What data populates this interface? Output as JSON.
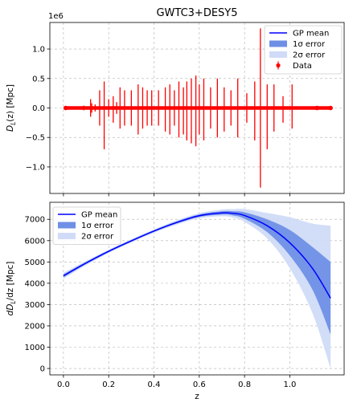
{
  "figure": {
    "title": "GWTC3+DESY5"
  },
  "chart_data": [
    {
      "type": "scatter",
      "title": "GWTC3+DESY5",
      "xlabel": "",
      "ylabel": "D_L(z) [Mpc]",
      "ylabel_parts": {
        "main": "D",
        "sub": "L",
        "rest": "(z) [Mpc]"
      },
      "y_scale_label": "1e6",
      "xlim": [
        -0.06,
        1.24
      ],
      "ylim": [
        -1.45,
        1.45
      ],
      "x_ticks": [
        0.0,
        0.2,
        0.4,
        0.6,
        0.8,
        1.0
      ],
      "y_ticks": [
        -1.0,
        -0.5,
        0.0,
        0.5,
        1.0
      ],
      "y_tick_labels": [
        "−1.0",
        "−0.5",
        "0.0",
        "0.5",
        "1.0"
      ],
      "grid": true,
      "legend_position": "top-right",
      "legend": [
        {
          "label": "GP mean",
          "kind": "line",
          "color": "#0000ff"
        },
        {
          "label": "1σ error",
          "kind": "band",
          "color": "#6f8fe6"
        },
        {
          "label": "2σ error",
          "kind": "band",
          "color": "#d0dbf7"
        },
        {
          "label": "Data",
          "kind": "errorbar",
          "color": "#ff0000"
        }
      ],
      "series": [
        {
          "name": "Data",
          "color": "#ff0000",
          "x": [
            0.01,
            0.03,
            0.06,
            0.09,
            0.12,
            0.125,
            0.14,
            0.16,
            0.18,
            0.2,
            0.22,
            0.235,
            0.25,
            0.27,
            0.3,
            0.33,
            0.35,
            0.37,
            0.39,
            0.42,
            0.45,
            0.47,
            0.49,
            0.51,
            0.53,
            0.545,
            0.565,
            0.585,
            0.6,
            0.62,
            0.65,
            0.68,
            0.71,
            0.74,
            0.77,
            0.81,
            0.845,
            0.87,
            0.9,
            0.93,
            0.97,
            1.01,
            1.08,
            1.12,
            1.18
          ],
          "y": [
            0,
            0,
            0,
            0,
            0,
            0,
            0,
            0,
            0,
            0,
            0,
            0,
            0,
            0,
            0,
            0,
            0,
            0,
            0,
            0,
            0,
            0,
            0,
            0,
            0,
            0,
            0,
            0,
            0,
            0,
            0,
            0,
            0,
            0,
            0,
            0,
            0,
            0,
            0,
            0,
            0,
            0,
            0,
            0,
            0
          ],
          "err_up": [
            0,
            0.02,
            0.02,
            0.04,
            0.15,
            0.08,
            0.06,
            0.3,
            0.45,
            0.15,
            0.2,
            0.1,
            0.35,
            0.3,
            0.3,
            0.4,
            0.35,
            0.3,
            0.3,
            0.3,
            0.35,
            0.4,
            0.3,
            0.45,
            0.35,
            0.45,
            0.5,
            0.55,
            0.4,
            0.5,
            0.35,
            0.5,
            0.35,
            0.3,
            0.5,
            0.25,
            0.45,
            1.35,
            0.4,
            0.4,
            0.2,
            0.4,
            0.02,
            0.01,
            0.01
          ],
          "err_down": [
            0,
            0.02,
            0.02,
            0.04,
            0.15,
            0.08,
            0.06,
            0.3,
            0.7,
            0.15,
            0.25,
            0.1,
            0.35,
            0.3,
            0.3,
            0.45,
            0.35,
            0.3,
            0.3,
            0.3,
            0.4,
            0.45,
            0.3,
            0.5,
            0.45,
            0.55,
            0.6,
            0.65,
            0.45,
            0.55,
            0.35,
            0.5,
            0.4,
            0.3,
            0.5,
            0.25,
            0.55,
            1.35,
            0.7,
            0.4,
            0.25,
            0.35,
            0.02,
            0.01,
            0.01
          ]
        }
      ],
      "marker_points": {
        "x": [
          0.01,
          1.12,
          1.18
        ],
        "y": [
          0,
          0,
          0
        ]
      }
    },
    {
      "type": "line",
      "title": "",
      "xlabel": "z",
      "ylabel": "dD_L/dz [Mpc]",
      "ylabel_parts": {
        "main": "dD",
        "sub": "L",
        "rest": "/dz [Mpc]"
      },
      "xlim": [
        -0.06,
        1.24
      ],
      "ylim": [
        -300,
        7800
      ],
      "x_ticks": [
        0.0,
        0.2,
        0.4,
        0.6,
        0.8,
        1.0
      ],
      "x_tick_labels": [
        "0.0",
        "0.2",
        "0.4",
        "0.6",
        "0.8",
        "1.0"
      ],
      "y_ticks": [
        0,
        1000,
        2000,
        3000,
        4000,
        5000,
        6000,
        7000
      ],
      "y_tick_labels": [
        "0",
        "1000",
        "2000",
        "3000",
        "4000",
        "5000",
        "6000",
        "7000"
      ],
      "grid": true,
      "legend_position": "top-left",
      "legend": [
        {
          "label": "GP mean",
          "kind": "line",
          "color": "#0000ff"
        },
        {
          "label": "1σ error",
          "kind": "band",
          "color": "#6f8fe6"
        },
        {
          "label": "2σ error",
          "kind": "band",
          "color": "#d0dbf7"
        }
      ],
      "x": [
        0.0,
        0.1,
        0.2,
        0.3,
        0.4,
        0.5,
        0.6,
        0.7,
        0.75,
        0.8,
        0.9,
        1.0,
        1.1,
        1.18
      ],
      "series": [
        {
          "name": "GP mean",
          "color": "#0000ff",
          "values": [
            4350,
            4950,
            5500,
            5990,
            6450,
            6850,
            7170,
            7300,
            7280,
            7180,
            6700,
            5900,
            4700,
            3300
          ]
        },
        {
          "name": "1σ error",
          "color": "#6f8fe6",
          "upper": [
            4420,
            5000,
            5540,
            6030,
            6490,
            6900,
            7230,
            7380,
            7380,
            7330,
            7000,
            6500,
            5700,
            5000
          ],
          "lower": [
            4280,
            4900,
            5460,
            5950,
            6410,
            6800,
            7110,
            7220,
            7180,
            7030,
            6400,
            5300,
            3700,
            1600
          ]
        },
        {
          "name": "2σ error",
          "color": "#d0dbf7",
          "upper": [
            4490,
            5050,
            5580,
            6070,
            6530,
            6950,
            7290,
            7460,
            7480,
            7480,
            7300,
            7100,
            6800,
            6700
          ],
          "lower": [
            4210,
            4850,
            5420,
            5910,
            6370,
            6750,
            7050,
            7140,
            7080,
            6880,
            6100,
            4700,
            2600,
            0
          ]
        }
      ]
    }
  ]
}
